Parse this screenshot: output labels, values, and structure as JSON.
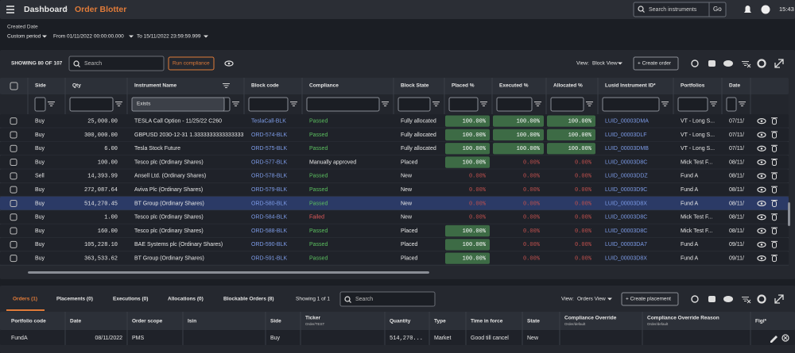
{
  "header": {
    "breadcrumb": [
      "Dashboard",
      "Order Blotter"
    ],
    "search_placeholder": "Search instruments",
    "go_button": "Go",
    "time": "15:43"
  },
  "filters": {
    "label": "Created Date",
    "period": "Custom period",
    "from": "From 01/11/2022 00:00:00.000",
    "to": "To 15/11/2022 23:59:59.999"
  },
  "blotter": {
    "showing": "SHOWING 80 OF 107",
    "search_placeholder": "Search",
    "run_compliance": "Run compliance",
    "view_label": "View:",
    "view": "Block View",
    "create": "+ Create order",
    "columns": [
      "Side",
      "Qty",
      "Instrument Name",
      "Block code",
      "Compliance",
      "Block State",
      "Placed %",
      "Executed %",
      "Allocated %",
      "Lusid Instrument ID*",
      "Portfolios",
      "Date"
    ],
    "instrument_filter": "Exists",
    "rows": [
      [
        "Buy",
        "25,000.00",
        "TESLA Call Option - 11/25/22 C260",
        "TeslaCall-BLK",
        "Passed",
        "Fully allocated",
        "100.00%",
        "100.00%",
        "100.00%",
        "LUID_00003DMA",
        "VT - Long S...",
        "07/11/"
      ],
      [
        "Buy",
        "300,000.00",
        "GBPUSD 2030-12-31 1.3333333333333333",
        "ORD-574-BLK",
        "Passed",
        "Fully allocated",
        "100.00%",
        "100.00%",
        "100.00%",
        "LUID_00003DLF",
        "VT - Long S...",
        "07/11/"
      ],
      [
        "Buy",
        "6.00",
        "Tesla Stock Future",
        "ORD-575-BLK",
        "Passed",
        "Fully allocated",
        "100.00%",
        "100.00%",
        "100.00%",
        "LUID_00003DMB",
        "VT - Long S...",
        "07/11/"
      ],
      [
        "Buy",
        "100.00",
        "Tesco plc (Ordinary Shares)",
        "ORD-577-BLK",
        "Manually approved",
        "Placed",
        "100.00%",
        "0.00%",
        "0.00%",
        "LUID_00003D8C",
        "Mick Test F...",
        "08/11/"
      ],
      [
        "Sell",
        "14,393.99",
        "Ansell Ltd. (Ordinary Shares)",
        "ORD-578-BLK",
        "Passed",
        "New",
        "0.00%",
        "0.00%",
        "0.00%",
        "LUID_00003DDZ",
        "Fund A",
        "08/11/"
      ],
      [
        "Buy",
        "272,087.64",
        "Aviva Plc (Ordinary Shares)",
        "ORD-579-BLK",
        "Passed",
        "New",
        "0.00%",
        "0.00%",
        "0.00%",
        "LUID_00003D9C",
        "Fund A",
        "08/11/"
      ],
      [
        "Buy",
        "514,270.45",
        "BT Group (Ordinary Shares)",
        "ORD-580-BLK",
        "Passed",
        "New",
        "0.00%",
        "0.00%",
        "0.00%",
        "LUID_00003D8X",
        "Fund A",
        "08/11/"
      ],
      [
        "Buy",
        "1.00",
        "Tesco plc (Ordinary Shares)",
        "ORD-584-BLK",
        "Failed",
        "New",
        "0.00%",
        "0.00%",
        "0.00%",
        "LUID_00003D8C",
        "Mick Test F...",
        "08/11/"
      ],
      [
        "Buy",
        "160.00",
        "Tesco plc (Ordinary Shares)",
        "ORD-588-BLK",
        "Passed",
        "Placed",
        "100.00%",
        "0.00%",
        "0.00%",
        "LUID_00003D8C",
        "Mick Test F...",
        "08/11/"
      ],
      [
        "Buy",
        "105,228.10",
        "BAE Systems plc (Ordinary Shares)",
        "ORD-590-BLK",
        "Passed",
        "Placed",
        "100.00%",
        "0.00%",
        "0.00%",
        "LUID_00003DA7",
        "Fund A",
        "09/11/"
      ],
      [
        "Buy",
        "363,533.62",
        "BT Group (Ordinary Shares)",
        "ORD-591-BLK",
        "Passed",
        "Placed",
        "100.00%",
        "0.00%",
        "0.00%",
        "LUID_00003D8X",
        "Fund A",
        "09/11/"
      ]
    ]
  },
  "bottom": {
    "tabs": [
      "Orders (1)",
      "Placements (0)",
      "Executions (0)",
      "Allocations (0)",
      "Blockable Orders (8)"
    ],
    "showing": "Showing 1 of 1",
    "search_placeholder": "Search",
    "view_label": "View:",
    "view": "Orders View",
    "create": "+ Create placement",
    "columns": [
      {
        "label": "Portfolio code"
      },
      {
        "label": "Date"
      },
      {
        "label": "Order scope"
      },
      {
        "label": "Isin"
      },
      {
        "label": "Side"
      },
      {
        "label": "Ticker",
        "sub": "Order/TEST"
      },
      {
        "label": "Quantity"
      },
      {
        "label": "Type"
      },
      {
        "label": "Time in force"
      },
      {
        "label": "State"
      },
      {
        "label": "Compliance Override",
        "sub": "Order/default"
      },
      {
        "label": "Compliance Override Reason",
        "sub": "Order/default"
      },
      {
        "label": "Figi*"
      }
    ],
    "row": {
      "0": "FundA",
      "1": "08/11/2022",
      "2": "PMS",
      "4": "Buy",
      "6": "514,270...",
      "7": "Market",
      "8": "Good till cancel",
      "9": "New"
    }
  }
}
